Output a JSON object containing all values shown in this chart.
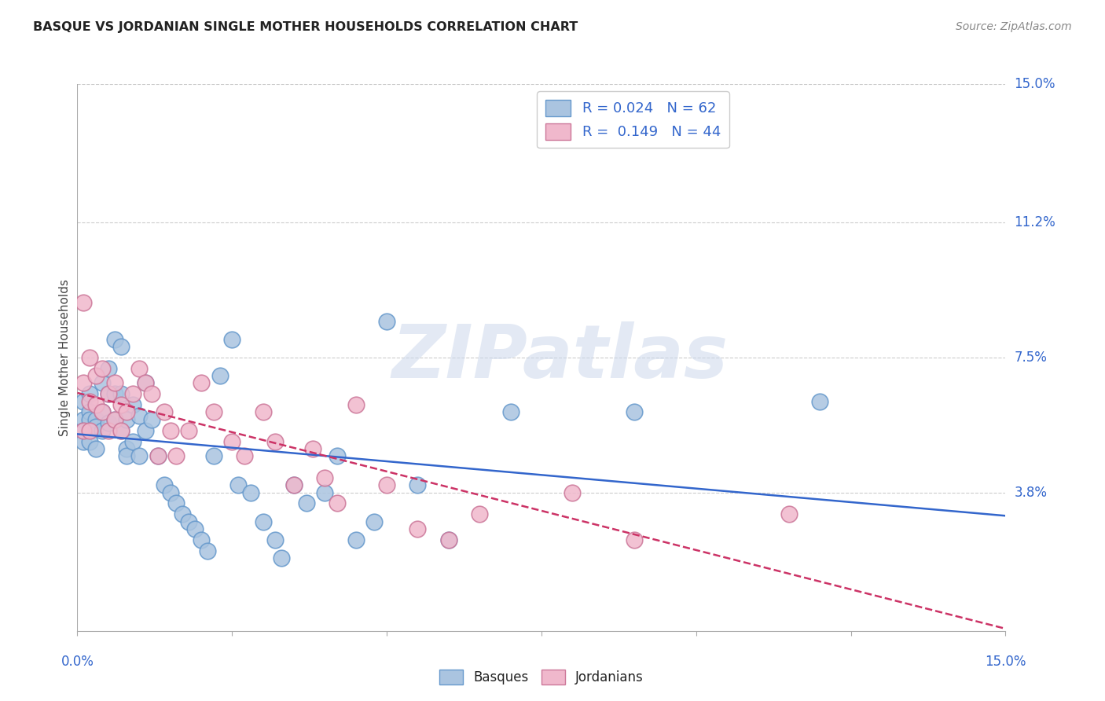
{
  "title": "BASQUE VS JORDANIAN SINGLE MOTHER HOUSEHOLDS CORRELATION CHART",
  "source": "Source: ZipAtlas.com",
  "ylabel": "Single Mother Households",
  "x_min": 0.0,
  "x_max": 0.15,
  "y_min": 0.0,
  "y_max": 0.15,
  "y_ticks": [
    0.038,
    0.075,
    0.112,
    0.15
  ],
  "y_tick_labels": [
    "3.8%",
    "7.5%",
    "11.2%",
    "15.0%"
  ],
  "x_ticks_minor": [
    0.0,
    0.025,
    0.05,
    0.075,
    0.1,
    0.125,
    0.15
  ],
  "watermark_text": "ZIPatlas",
  "basques_color": "#aac4e0",
  "basques_edge_color": "#6699cc",
  "jordanians_color": "#f0b8cc",
  "jordanians_edge_color": "#cc7799",
  "trendline_basques_color": "#3366cc",
  "trendline_jordanians_color": "#cc3366",
  "background_color": "#ffffff",
  "grid_color": "#cccccc",
  "title_color": "#222222",
  "right_label_color": "#3366cc",
  "basques_R": 0.024,
  "basques_N": 62,
  "jordanians_R": 0.149,
  "jordanians_N": 44,
  "basques_x": [
    0.001,
    0.001,
    0.001,
    0.001,
    0.002,
    0.002,
    0.002,
    0.002,
    0.003,
    0.003,
    0.003,
    0.004,
    0.004,
    0.004,
    0.005,
    0.005,
    0.005,
    0.006,
    0.006,
    0.006,
    0.007,
    0.007,
    0.007,
    0.008,
    0.008,
    0.008,
    0.009,
    0.009,
    0.01,
    0.01,
    0.011,
    0.011,
    0.012,
    0.013,
    0.014,
    0.015,
    0.016,
    0.017,
    0.018,
    0.019,
    0.02,
    0.021,
    0.022,
    0.023,
    0.025,
    0.026,
    0.028,
    0.03,
    0.032,
    0.033,
    0.035,
    0.037,
    0.04,
    0.042,
    0.045,
    0.048,
    0.05,
    0.055,
    0.06,
    0.07,
    0.09,
    0.12
  ],
  "basques_y": [
    0.063,
    0.058,
    0.055,
    0.052,
    0.065,
    0.06,
    0.058,
    0.052,
    0.058,
    0.056,
    0.05,
    0.068,
    0.06,
    0.055,
    0.072,
    0.065,
    0.057,
    0.08,
    0.065,
    0.058,
    0.078,
    0.065,
    0.055,
    0.05,
    0.058,
    0.048,
    0.062,
    0.052,
    0.059,
    0.048,
    0.068,
    0.055,
    0.058,
    0.048,
    0.04,
    0.038,
    0.035,
    0.032,
    0.03,
    0.028,
    0.025,
    0.022,
    0.048,
    0.07,
    0.08,
    0.04,
    0.038,
    0.03,
    0.025,
    0.02,
    0.04,
    0.035,
    0.038,
    0.048,
    0.025,
    0.03,
    0.085,
    0.04,
    0.025,
    0.06,
    0.06,
    0.063
  ],
  "jordanians_x": [
    0.001,
    0.001,
    0.001,
    0.002,
    0.002,
    0.002,
    0.003,
    0.003,
    0.004,
    0.004,
    0.005,
    0.005,
    0.006,
    0.006,
    0.007,
    0.007,
    0.008,
    0.009,
    0.01,
    0.011,
    0.012,
    0.013,
    0.014,
    0.015,
    0.016,
    0.018,
    0.02,
    0.022,
    0.025,
    0.027,
    0.03,
    0.032,
    0.035,
    0.038,
    0.04,
    0.042,
    0.045,
    0.05,
    0.055,
    0.06,
    0.065,
    0.08,
    0.09,
    0.115
  ],
  "jordanians_y": [
    0.09,
    0.068,
    0.055,
    0.075,
    0.063,
    0.055,
    0.07,
    0.062,
    0.072,
    0.06,
    0.065,
    0.055,
    0.068,
    0.058,
    0.062,
    0.055,
    0.06,
    0.065,
    0.072,
    0.068,
    0.065,
    0.048,
    0.06,
    0.055,
    0.048,
    0.055,
    0.068,
    0.06,
    0.052,
    0.048,
    0.06,
    0.052,
    0.04,
    0.05,
    0.042,
    0.035,
    0.062,
    0.04,
    0.028,
    0.025,
    0.032,
    0.038,
    0.025,
    0.032
  ]
}
